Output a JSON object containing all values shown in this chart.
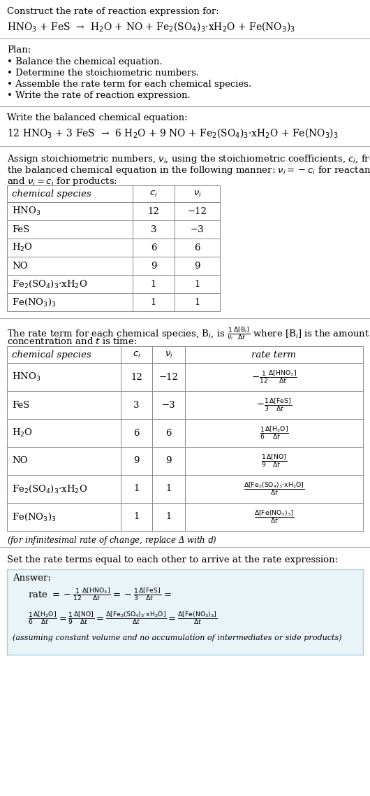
{
  "title_line1": "Construct the rate of reaction expression for:",
  "reaction_unbalanced": "HNO$_3$ + FeS  →  H$_2$O + NO + Fe$_2$(SO$_4$)$_3$·xH$_2$O + Fe(NO$_3$)$_3$",
  "plan_title": "Plan:",
  "plan_items": [
    "• Balance the chemical equation.",
    "• Determine the stoichiometric numbers.",
    "• Assemble the rate term for each chemical species.",
    "• Write the rate of reaction expression."
  ],
  "balanced_label": "Write the balanced chemical equation:",
  "reaction_balanced": "12 HNO$_3$ + 3 FeS  →  6 H$_2$O + 9 NO + Fe$_2$(SO$_4$)$_3$·xH$_2$O + Fe(NO$_3$)$_3$",
  "stoich_intro1": "Assign stoichiometric numbers, $\\nu_i$, using the stoichiometric coefficients, $c_i$, from",
  "stoich_intro2": "the balanced chemical equation in the following manner: $\\nu_i = -c_i$ for reactants",
  "stoich_intro3": "and $\\nu_i = c_i$ for products:",
  "table1_headers": [
    "chemical species",
    "$c_i$",
    "$\\nu_i$"
  ],
  "table1_rows": [
    [
      "HNO$_3$",
      "12",
      "−12"
    ],
    [
      "FeS",
      "3",
      "−3"
    ],
    [
      "H$_2$O",
      "6",
      "6"
    ],
    [
      "NO",
      "9",
      "9"
    ],
    [
      "Fe$_2$(SO$_4$)$_3$·xH$_2$O",
      "1",
      "1"
    ],
    [
      "Fe(NO$_3$)$_3$",
      "1",
      "1"
    ]
  ],
  "rate_intro1": "The rate term for each chemical species, B$_i$, is $\\frac{1}{\\nu_i}\\frac{\\Delta[\\mathrm{B}_i]}{\\Delta t}$ where [B$_i$] is the amount",
  "rate_intro2": "concentration and $t$ is time:",
  "table2_headers": [
    "chemical species",
    "$c_i$",
    "$\\nu_i$",
    "rate term"
  ],
  "table2_rows": [
    [
      "HNO$_3$",
      "12",
      "−12",
      "$-\\frac{1}{12}\\frac{\\Delta[\\mathrm{HNO_3}]}{\\Delta t}$"
    ],
    [
      "FeS",
      "3",
      "−3",
      "$-\\frac{1}{3}\\frac{\\Delta[\\mathrm{FeS}]}{\\Delta t}$"
    ],
    [
      "H$_2$O",
      "6",
      "6",
      "$\\frac{1}{6}\\frac{\\Delta[\\mathrm{H_2O}]}{\\Delta t}$"
    ],
    [
      "NO",
      "9",
      "9",
      "$\\frac{1}{9}\\frac{\\Delta[\\mathrm{NO}]}{\\Delta t}$"
    ],
    [
      "Fe$_2$(SO$_4$)$_3$·xH$_2$O",
      "1",
      "1",
      "$\\frac{\\Delta[\\mathrm{Fe_2(SO_4)_3{\\cdot}xH_2O}]}{\\Delta t}$"
    ],
    [
      "Fe(NO$_3$)$_3$",
      "1",
      "1",
      "$\\frac{\\Delta[\\mathrm{Fe(NO_3)_3}]}{\\Delta t}$"
    ]
  ],
  "infinitesimal_note": "(for infinitesimal rate of change, replace Δ with $d$)",
  "set_equal_text": "Set the rate terms equal to each other to arrive at the rate expression:",
  "answer_label": "Answer:",
  "bg_color": "#ffffff",
  "text_color": "#000000",
  "table_border_color": "#888888",
  "answer_box_color": "#e8f4f8",
  "answer_box_border": "#aaccdd"
}
